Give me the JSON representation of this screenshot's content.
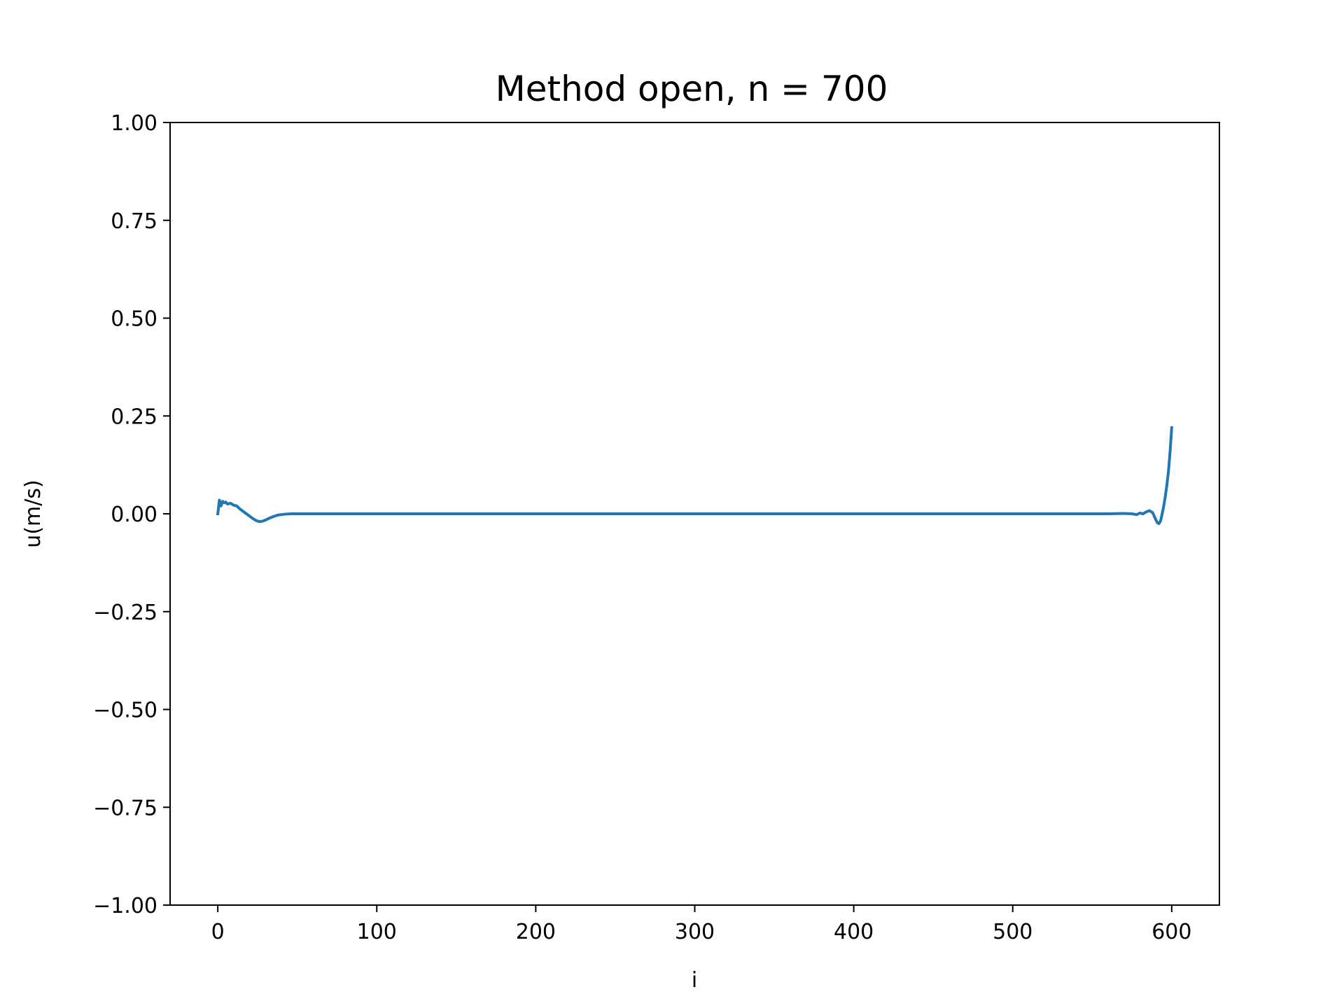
{
  "chart_data": {
    "type": "line",
    "title": "Method open,  n = 700",
    "xlabel": "i",
    "ylabel": "u(m/s)",
    "xlim": [
      -30,
      630
    ],
    "ylim": [
      -1.0,
      1.0
    ],
    "xticks": [
      0,
      100,
      200,
      300,
      400,
      500,
      600
    ],
    "xtick_labels": [
      "0",
      "100",
      "200",
      "300",
      "400",
      "500",
      "600"
    ],
    "yticks": [
      -1.0,
      -0.75,
      -0.5,
      -0.25,
      0.0,
      0.25,
      0.5,
      0.75,
      1.0
    ],
    "ytick_labels": [
      "−1.00",
      "−0.75",
      "−0.50",
      "−0.25",
      "0.00",
      "0.25",
      "0.50",
      "0.75",
      "1.00"
    ],
    "grid": false,
    "colors": {
      "series": "#1f77b4",
      "axes": "#000000",
      "background": "#ffffff"
    },
    "series": [
      {
        "x": [
          0,
          1,
          2,
          3,
          4,
          5,
          6,
          8,
          10,
          12,
          14,
          16,
          18,
          20,
          22,
          24,
          26,
          28,
          30,
          32,
          35,
          38,
          42,
          46,
          50,
          60,
          100,
          200,
          300,
          400,
          500,
          560,
          570,
          575,
          578,
          580,
          582,
          584,
          586,
          588,
          590,
          591,
          592,
          593,
          594,
          595,
          596,
          597,
          598,
          599,
          600
        ],
        "y": [
          0.0,
          0.035,
          0.02,
          0.032,
          0.028,
          0.03,
          0.025,
          0.027,
          0.022,
          0.02,
          0.012,
          0.006,
          0.0,
          -0.006,
          -0.012,
          -0.017,
          -0.02,
          -0.019,
          -0.016,
          -0.012,
          -0.007,
          -0.003,
          -0.001,
          0.0,
          0.0,
          0.0,
          0.0,
          0.0,
          0.0,
          0.0,
          0.0,
          0.0,
          0.001,
          0.0,
          -0.002,
          0.002,
          0.0,
          0.005,
          0.008,
          0.003,
          -0.015,
          -0.023,
          -0.025,
          -0.018,
          0.0,
          0.02,
          0.045,
          0.075,
          0.11,
          0.16,
          0.22
        ]
      }
    ]
  }
}
